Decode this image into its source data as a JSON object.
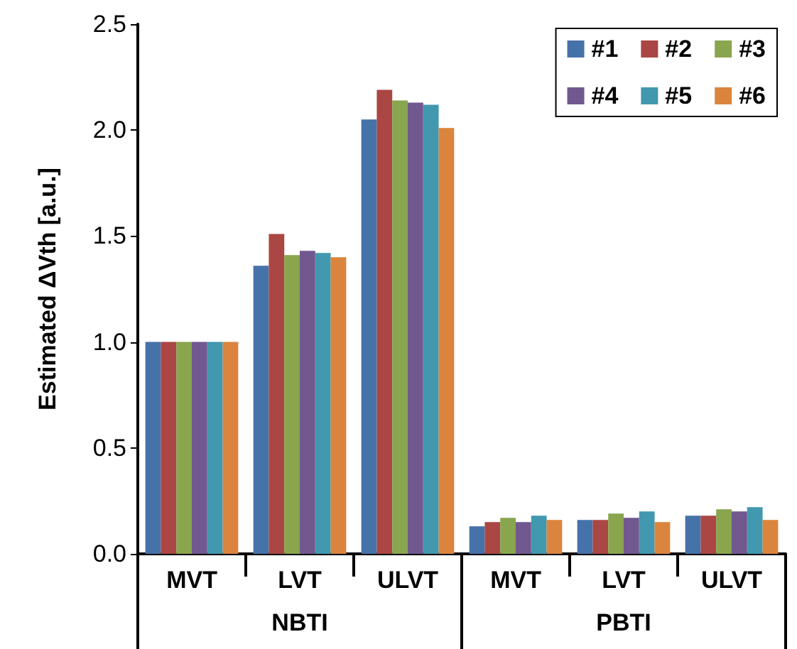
{
  "chart_data": {
    "type": "bar",
    "ylabel": "Estimated ΔVth [a.u.]",
    "categories": [
      "MVT",
      "LVT",
      "ULVT",
      "MVT",
      "LVT",
      "ULVT"
    ],
    "annotations": [
      "NBTI",
      "PBTI"
    ],
    "series": [
      {
        "name": "#1",
        "color": "#4672aa",
        "values": [
          1.0,
          1.36,
          2.05,
          0.13,
          0.16,
          0.18
        ]
      },
      {
        "name": "#2",
        "color": "#aa4643",
        "values": [
          1.0,
          1.51,
          2.19,
          0.15,
          0.16,
          0.18
        ]
      },
      {
        "name": "#3",
        "color": "#89a54e",
        "values": [
          1.0,
          1.41,
          2.14,
          0.17,
          0.19,
          0.21
        ]
      },
      {
        "name": "#4",
        "color": "#71588f",
        "values": [
          1.0,
          1.43,
          2.13,
          0.15,
          0.17,
          0.2
        ]
      },
      {
        "name": "#5",
        "color": "#4198af",
        "values": [
          1.0,
          1.42,
          2.12,
          0.18,
          0.2,
          0.22
        ]
      },
      {
        "name": "#6",
        "color": "#db843d",
        "values": [
          1.0,
          1.4,
          2.01,
          0.16,
          0.15,
          0.16
        ]
      }
    ],
    "ylim": [
      0,
      2.5
    ],
    "yticks": [
      {
        "value": 0,
        "label": "0.0"
      },
      {
        "value": 0.5,
        "label": "0.5"
      },
      {
        "value": 1,
        "label": "1.0"
      },
      {
        "value": 1.5,
        "label": "1.5"
      },
      {
        "value": 2,
        "label": "2.0"
      },
      {
        "value": 2.5,
        "label": "2.5"
      }
    ],
    "grid": false,
    "legend": "top right"
  }
}
